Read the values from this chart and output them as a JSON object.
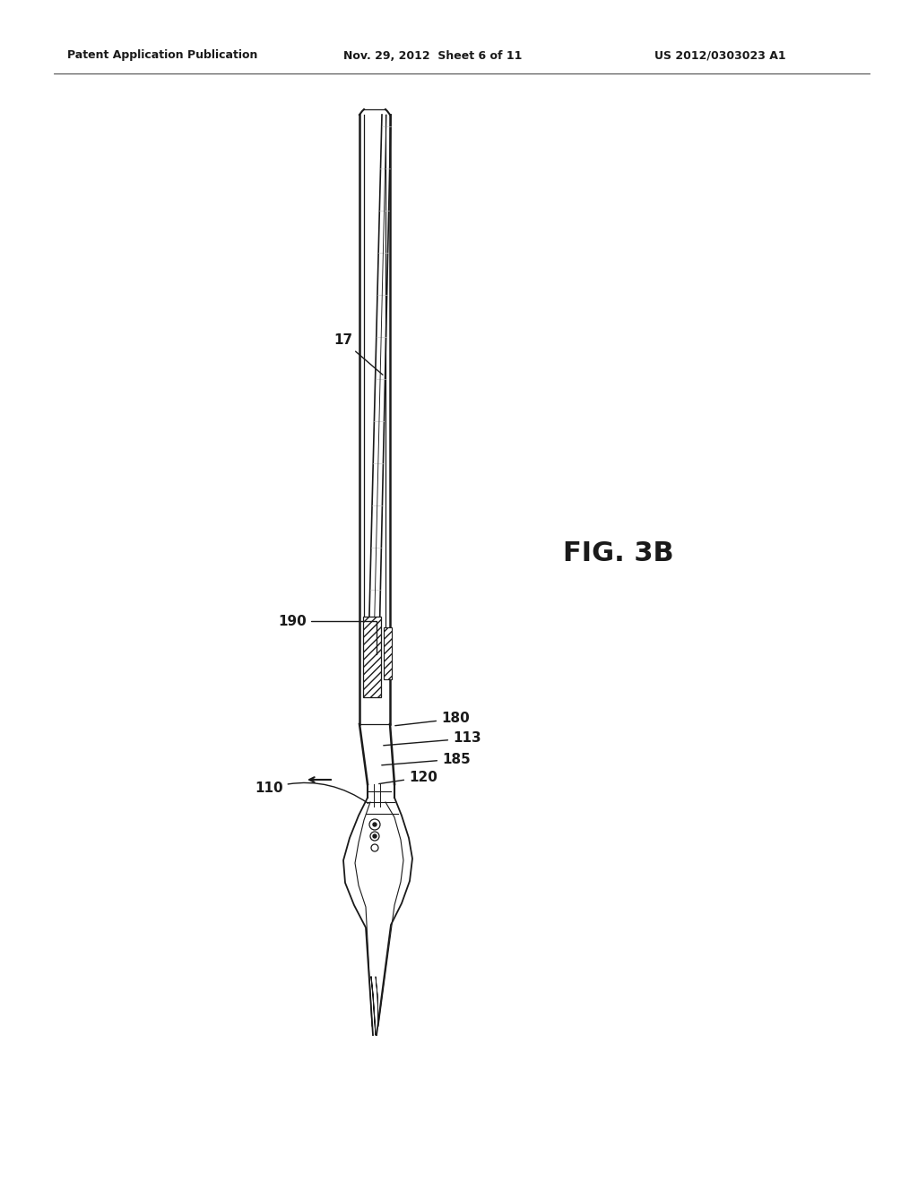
{
  "patent_header_left": "Patent Application Publication",
  "patent_header_mid": "Nov. 29, 2012  Sheet 6 of 11",
  "patent_header_right": "US 2012/0303023 A1",
  "fig_label": "FIG. 3B",
  "bg_color": "#ffffff",
  "line_color": "#1a1a1a",
  "ref_numbers": [
    "17",
    "110",
    "113",
    "120",
    "180",
    "185",
    "190"
  ]
}
